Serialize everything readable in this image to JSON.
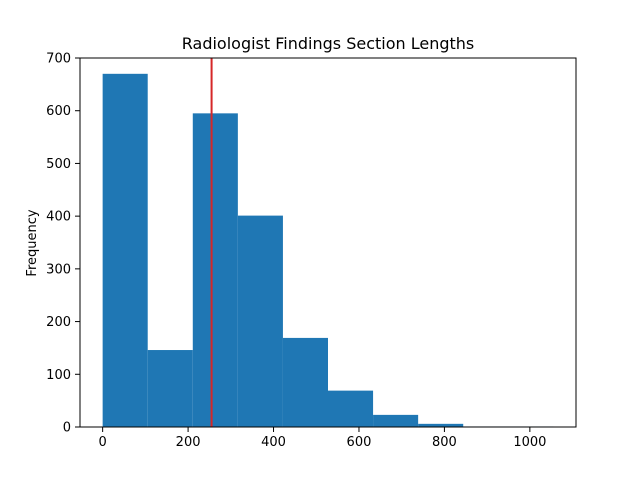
{
  "chart_data": {
    "type": "bar",
    "subtype": "histogram",
    "title": "Radiologist Findings Section Lengths",
    "xlabel": "",
    "ylabel": "Frequency",
    "bins": [
      {
        "start": 0,
        "end": 105.5,
        "count": 670
      },
      {
        "start": 105.5,
        "end": 211,
        "count": 146
      },
      {
        "start": 211,
        "end": 316.5,
        "count": 595
      },
      {
        "start": 316.5,
        "end": 422,
        "count": 401
      },
      {
        "start": 422,
        "end": 527.5,
        "count": 169
      },
      {
        "start": 527.5,
        "end": 633,
        "count": 69
      },
      {
        "start": 633,
        "end": 738.5,
        "count": 23
      },
      {
        "start": 738.5,
        "end": 844,
        "count": 6
      },
      {
        "start": 844,
        "end": 949.5,
        "count": 1
      },
      {
        "start": 949.5,
        "end": 1055,
        "count": 1
      }
    ],
    "xlim": [
      -53,
      1108
    ],
    "ylim": [
      0,
      700
    ],
    "xticks": [
      "0",
      "200",
      "400",
      "600",
      "800",
      "1000"
    ],
    "xtick_values": [
      0,
      200,
      400,
      600,
      800,
      1000
    ],
    "yticks": [
      "0",
      "100",
      "200",
      "300",
      "400",
      "500",
      "600",
      "700"
    ],
    "ytick_values": [
      0,
      100,
      200,
      300,
      400,
      500,
      600,
      700
    ],
    "vertical_line": {
      "x": 255,
      "color": "#d62728"
    },
    "bar_color": "#1f77b4",
    "grid": false,
    "legend": "none"
  }
}
